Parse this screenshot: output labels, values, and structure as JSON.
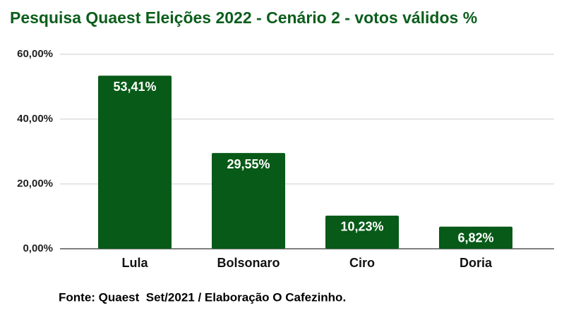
{
  "chart_data": {
    "type": "bar",
    "title": "Pesquisa Quaest Eleições 2022 - Cenário 2 - votos válidos %",
    "categories": [
      "Lula",
      "Bolsonaro",
      "Ciro",
      "Doria"
    ],
    "values": [
      53.41,
      29.55,
      10.23,
      6.82
    ],
    "value_labels": [
      "53,41%",
      "29,55%",
      "10,23%",
      "6,82%"
    ],
    "color": "#075a17",
    "ylim": [
      0,
      60
    ],
    "yticks": [
      {
        "value": 0,
        "label": "0,00%"
      },
      {
        "value": 20,
        "label": "20,00%"
      },
      {
        "value": 40,
        "label": "40,00%"
      },
      {
        "value": 60,
        "label": "60,00%"
      }
    ],
    "grid": true,
    "source": "Fonte: Quaest  Set/2021 / Elaboração O Cafezinho."
  }
}
